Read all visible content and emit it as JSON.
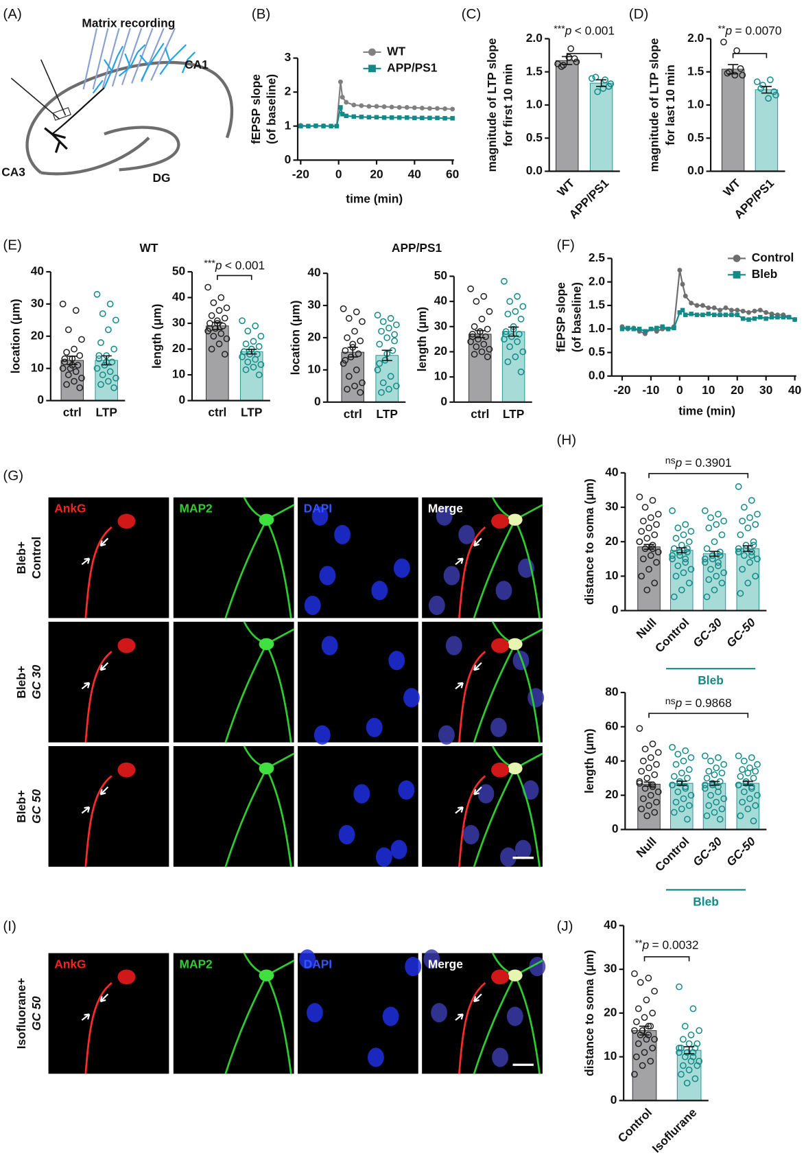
{
  "panels": [
    "(A)",
    "(B)",
    "(C)",
    "(D)",
    "(E)",
    "(F)",
    "(G)",
    "(H)",
    "(I)",
    "(J)"
  ],
  "diagram_A": {
    "recording": "Matrix recording",
    "ca1": "CA1",
    "ca3": "CA3",
    "dg": "DG"
  },
  "panel_E": {
    "titles": [
      "WT",
      "APP/PS1"
    ]
  },
  "micrographs": {
    "channels": [
      "AnkG",
      "MAP2",
      "DAPI",
      "Merge"
    ],
    "rows_G": [
      [
        "Bleb+",
        "Control"
      ],
      [
        "Bleb+",
        "GC 30"
      ],
      [
        "Bleb+",
        "GC 50"
      ]
    ],
    "row_I": [
      "Isofluorane+",
      "GC 50"
    ]
  },
  "chart_data": [
    {
      "type": "line",
      "xlabel": "time (min)",
      "ylabel": [
        "fEPSP slope",
        "(of baseline)"
      ],
      "x": [
        -20,
        -16,
        -12,
        -8,
        -4,
        -1,
        1,
        2,
        4,
        8,
        12,
        16,
        20,
        24,
        28,
        32,
        36,
        40,
        44,
        48,
        52,
        56,
        60
      ],
      "series": [
        {
          "name": "WT",
          "color": "#808080",
          "marker": "circle",
          "values": [
            1.02,
            1.0,
            1.0,
            1.01,
            1.0,
            1.0,
            2.3,
            1.85,
            1.7,
            1.62,
            1.6,
            1.58,
            1.58,
            1.57,
            1.56,
            1.55,
            1.55,
            1.54,
            1.53,
            1.52,
            1.52,
            1.51,
            1.5
          ]
        },
        {
          "name": "APP/PS1",
          "color": "#138a88",
          "marker": "square",
          "values": [
            1.0,
            1.0,
            1.01,
            1.0,
            1.0,
            1.0,
            1.55,
            1.35,
            1.3,
            1.28,
            1.27,
            1.26,
            1.26,
            1.25,
            1.25,
            1.25,
            1.25,
            1.24,
            1.24,
            1.24,
            1.24,
            1.23,
            1.23
          ]
        }
      ],
      "xlim": [
        -20,
        60
      ],
      "xticks": [
        -20,
        0,
        20,
        40,
        60
      ],
      "ylim": [
        0,
        3
      ],
      "yticks": [
        0,
        1,
        2,
        3
      ]
    },
    {
      "type": "bar",
      "ylabel": [
        "magnitude of LTP slope",
        "for first 10 min"
      ],
      "categories": [
        "WT",
        "APP/PS1"
      ],
      "values": [
        1.67,
        1.33
      ],
      "errors": [
        0.06,
        0.05
      ],
      "bar_colors": [
        "#a3a3a5",
        "#a6dbd7"
      ],
      "point_colors": [
        "#222222",
        "#138a88"
      ],
      "points": [
        [
          1.62,
          1.85,
          1.6,
          1.65,
          1.72,
          1.58,
          1.7
        ],
        [
          1.4,
          1.38,
          1.2,
          1.32,
          1.25,
          1.42,
          1.28
        ]
      ],
      "ylim": [
        0,
        2
      ],
      "yticks": [
        {
          "value": 0,
          "label": "0.0"
        },
        0.5,
        {
          "value": 1,
          "label": "1.0"
        },
        1.5,
        {
          "value": 2,
          "label": "2.0"
        }
      ],
      "significance": {
        "stars": "***",
        "p": "p",
        "text": "< 0.001"
      }
    },
    {
      "type": "bar",
      "ylabel": [
        "magnitude of LTP slope",
        "for last 10 min"
      ],
      "categories": [
        "WT",
        "APP/PS1"
      ],
      "values": [
        1.54,
        1.23
      ],
      "errors": [
        0.07,
        0.05
      ],
      "bar_colors": [
        "#a3a3a5",
        "#a6dbd7"
      ],
      "point_colors": [
        "#222222",
        "#138a88"
      ],
      "points": [
        [
          1.95,
          1.82,
          1.5,
          1.45,
          1.45,
          1.48,
          1.55
        ],
        [
          1.35,
          1.38,
          1.3,
          1.15,
          1.1,
          1.25,
          1.2
        ]
      ],
      "ylim": [
        0,
        2
      ],
      "yticks": [
        {
          "value": 0,
          "label": "0.0"
        },
        0.5,
        {
          "value": 1,
          "label": "1.0"
        },
        1.5,
        {
          "value": 2,
          "label": "2.0"
        }
      ],
      "significance": {
        "stars": "**",
        "p": "p",
        "text": "= 0.0070"
      }
    },
    {
      "type": "bar",
      "ylabel": "location (μm)",
      "categories": [
        "ctrl",
        "LTP"
      ],
      "values": [
        12.5,
        12.5
      ],
      "errors": [
        1.3,
        1.4
      ],
      "bar_colors": [
        "#a3a3a5",
        "#a6dbd7"
      ],
      "point_colors": [
        "#222222",
        "#138a88"
      ],
      "points": [
        [
          30,
          28,
          22,
          19,
          16,
          15,
          14,
          13,
          12,
          11,
          10,
          10,
          9,
          8,
          7,
          6,
          5,
          4,
          11,
          13
        ],
        [
          33,
          30,
          27,
          25,
          22,
          18,
          16,
          14,
          13,
          12,
          11,
          10,
          9,
          8,
          7,
          6,
          5,
          4,
          12,
          14
        ]
      ],
      "ylim": [
        0,
        40
      ],
      "yticks": [
        0,
        10,
        20,
        30,
        40
      ]
    },
    {
      "type": "bar",
      "ylabel": "length (μm)",
      "categories": [
        "ctrl",
        "LTP"
      ],
      "values": [
        29,
        19
      ],
      "errors": [
        1.4,
        0.9
      ],
      "bar_colors": [
        "#a3a3a5",
        "#a6dbd7"
      ],
      "point_colors": [
        "#222222",
        "#138a88"
      ],
      "points": [
        [
          44,
          40,
          38,
          36,
          35,
          33,
          32,
          31,
          30,
          29,
          28,
          27,
          26,
          25,
          24,
          22,
          20,
          18,
          30,
          28
        ],
        [
          31,
          29,
          27,
          25,
          23,
          22,
          21,
          20,
          19,
          18,
          18,
          17,
          16,
          15,
          14,
          13,
          12,
          10,
          20,
          19
        ]
      ],
      "ylim": [
        0,
        50
      ],
      "yticks": [
        0,
        10,
        20,
        30,
        40,
        50
      ],
      "significance": {
        "stars": "***",
        "p": "p",
        "text": "< 0.001"
      }
    },
    {
      "type": "bar",
      "ylabel": "location (μm)",
      "categories": [
        "ctrl",
        "LTP"
      ],
      "values": [
        15.5,
        14.5
      ],
      "errors": [
        1.5,
        1.6
      ],
      "bar_colors": [
        "#a3a3a5",
        "#a6dbd7"
      ],
      "point_colors": [
        "#222222",
        "#138a88"
      ],
      "points": [
        [
          29,
          28,
          26,
          25,
          22,
          20,
          19,
          18,
          16,
          15,
          14,
          12,
          10,
          8,
          6,
          5,
          4,
          3,
          17,
          13
        ],
        [
          27,
          26,
          25,
          24,
          23,
          22,
          21,
          20,
          18,
          16,
          13,
          10,
          8,
          6,
          5,
          4,
          3,
          19,
          15,
          12
        ]
      ],
      "ylim": [
        0,
        40
      ],
      "yticks": [
        0,
        10,
        20,
        30,
        40
      ]
    },
    {
      "type": "bar",
      "ylabel": "length (μm)",
      "categories": [
        "ctrl",
        "LTP"
      ],
      "values": [
        27,
        28
      ],
      "errors": [
        1.4,
        1.8
      ],
      "bar_colors": [
        "#a3a3a5",
        "#a6dbd7"
      ],
      "point_colors": [
        "#222222",
        "#138a88"
      ],
      "points": [
        [
          45,
          42,
          40,
          36,
          33,
          30,
          29,
          28,
          27,
          26,
          25,
          24,
          23,
          22,
          21,
          20,
          19,
          18,
          28,
          26
        ],
        [
          48,
          42,
          40,
          38,
          36,
          35,
          33,
          30,
          28,
          27,
          26,
          25,
          24,
          22,
          20,
          18,
          16,
          12,
          29,
          27
        ]
      ],
      "ylim": [
        0,
        50
      ],
      "yticks": [
        0,
        10,
        20,
        30,
        40,
        50
      ]
    },
    {
      "type": "line",
      "xlabel": "time (min)",
      "ylabel": [
        "fEPSP slope",
        "(of baseline)"
      ],
      "x": [
        -20,
        -18,
        -16,
        -14,
        -12,
        -10,
        -8,
        -6,
        -4,
        -2,
        0,
        1,
        2,
        4,
        6,
        8,
        10,
        12,
        14,
        16,
        18,
        20,
        22,
        24,
        26,
        28,
        30,
        32,
        34,
        36,
        38,
        40
      ],
      "series": [
        {
          "name": "Control",
          "color": "#6e6e6e",
          "marker": "circle",
          "values": [
            1.05,
            1.0,
            1.02,
            0.95,
            0.9,
            1.0,
            0.95,
            1.0,
            1.0,
            1.05,
            2.25,
            1.95,
            1.7,
            1.55,
            1.5,
            1.5,
            1.45,
            1.45,
            1.4,
            1.45,
            1.4,
            1.4,
            1.38,
            1.35,
            1.38,
            1.4,
            1.35,
            1.32,
            1.3,
            1.3,
            1.25,
            1.2
          ]
        },
        {
          "name": "Bleb",
          "color": "#138a88",
          "marker": "square",
          "values": [
            1.0,
            1.02,
            1.0,
            1.0,
            0.95,
            1.0,
            1.02,
            1.05,
            1.0,
            1.02,
            1.35,
            1.4,
            1.3,
            1.32,
            1.3,
            1.3,
            1.32,
            1.3,
            1.3,
            1.3,
            1.3,
            1.3,
            1.22,
            1.2,
            1.22,
            1.25,
            1.22,
            1.25,
            1.25,
            1.25,
            1.25,
            1.2
          ]
        }
      ],
      "xlim": [
        -20,
        40
      ],
      "xticks": [
        -20,
        -10,
        0,
        10,
        20,
        30,
        40
      ],
      "ylim": [
        0,
        2.5
      ],
      "yticks": [
        {
          "value": 0,
          "label": "0.0"
        },
        0.5,
        {
          "value": 1,
          "label": "1.0"
        },
        1.5,
        {
          "value": 2,
          "label": "2.0"
        },
        2.5
      ]
    },
    {
      "type": "bar",
      "ylabel": "distance to soma (μm)",
      "categories": [
        "Null",
        "Control",
        "GC-30",
        "GC-50"
      ],
      "group_label": "Bleb",
      "values": [
        18.5,
        17.5,
        16.5,
        18
      ],
      "errors": [
        0.7,
        0.7,
        0.7,
        0.8
      ],
      "bar_colors": [
        "#a3a3a5",
        "#a6dbd7",
        "#a6dbd7",
        "#a6dbd7"
      ],
      "point_colors": [
        "#222222",
        "#138a88",
        "#138a88",
        "#138a88"
      ],
      "points": [
        [
          33,
          32,
          30,
          28,
          27,
          26,
          25,
          24,
          23,
          22,
          21,
          20,
          19,
          18,
          17,
          16,
          15,
          14,
          12,
          10,
          8,
          6,
          20,
          18
        ],
        [
          29,
          25,
          24,
          23,
          22,
          21,
          20,
          19,
          18,
          17,
          16,
          15,
          14,
          13,
          12,
          11,
          10,
          8,
          6,
          4,
          18,
          17,
          16,
          15
        ],
        [
          29,
          28,
          27,
          26,
          25,
          24,
          22,
          20,
          18,
          16,
          15,
          14,
          13,
          12,
          11,
          10,
          9,
          8,
          6,
          4,
          17,
          16,
          15,
          14
        ],
        [
          36,
          32,
          30,
          28,
          27,
          26,
          25,
          24,
          22,
          20,
          19,
          18,
          17,
          16,
          15,
          14,
          12,
          10,
          8,
          5,
          19,
          18,
          17,
          16
        ]
      ],
      "ylim": [
        0,
        40
      ],
      "yticks": [
        0,
        10,
        20,
        30,
        40
      ],
      "significance": {
        "stars": "ns",
        "p": "p",
        "text": "= 0.3901"
      }
    },
    {
      "type": "bar",
      "ylabel": "length (μm)",
      "categories": [
        "Null",
        "Control",
        "GC-30",
        "GC-50"
      ],
      "group_label": "Bleb",
      "values": [
        26.5,
        27,
        27,
        27
      ],
      "errors": [
        1.2,
        1.2,
        1.1,
        1.1
      ],
      "bar_colors": [
        "#a3a3a5",
        "#a6dbd7",
        "#a6dbd7",
        "#a6dbd7"
      ],
      "point_colors": [
        "#222222",
        "#138a88",
        "#138a88",
        "#138a88"
      ],
      "points": [
        [
          59,
          50,
          47,
          45,
          42,
          40,
          38,
          36,
          34,
          32,
          30,
          28,
          26,
          24,
          22,
          20,
          18,
          16,
          14,
          12,
          10,
          8,
          27,
          25
        ],
        [
          48,
          46,
          44,
          42,
          40,
          38,
          35,
          33,
          31,
          30,
          28,
          26,
          24,
          22,
          20,
          18,
          16,
          14,
          12,
          10,
          6,
          27,
          26,
          25
        ],
        [
          43,
          42,
          40,
          38,
          36,
          34,
          33,
          32,
          30,
          28,
          26,
          24,
          22,
          20,
          18,
          16,
          14,
          12,
          10,
          8,
          6,
          27,
          26,
          25
        ],
        [
          43,
          42,
          40,
          38,
          36,
          35,
          34,
          33,
          31,
          30,
          28,
          26,
          24,
          22,
          20,
          18,
          16,
          14,
          12,
          8,
          5,
          27,
          26,
          25
        ]
      ],
      "ylim": [
        0,
        80
      ],
      "yticks": [
        0,
        20,
        40,
        60,
        80
      ],
      "significance": {
        "stars": "ns",
        "p": "p",
        "text": "= 0.9868"
      }
    },
    {
      "type": "bar",
      "ylabel": "distance to soma (μm)",
      "categories": [
        "Control",
        "Isoflurane"
      ],
      "values": [
        16,
        11.5
      ],
      "errors": [
        1.0,
        0.8
      ],
      "bar_colors": [
        "#a3a3a5",
        "#a6dbd7"
      ],
      "point_colors": [
        "#222222",
        "#138a88"
      ],
      "points": [
        [
          29,
          28,
          27,
          25,
          23,
          21,
          20,
          19,
          18,
          17,
          16,
          16,
          15,
          15,
          14,
          14,
          13,
          12,
          11,
          10,
          9,
          8,
          6,
          17
        ],
        [
          26,
          21,
          17,
          16,
          15,
          14,
          13,
          13,
          12,
          12,
          11,
          11,
          10,
          10,
          9,
          9,
          8,
          8,
          7,
          6,
          5,
          4,
          12,
          11
        ]
      ],
      "ylim": [
        0,
        40
      ],
      "yticks": [
        0,
        10,
        20,
        30,
        40
      ],
      "significance": {
        "stars": "**",
        "p": "p",
        "text": "= 0.0032"
      }
    }
  ]
}
